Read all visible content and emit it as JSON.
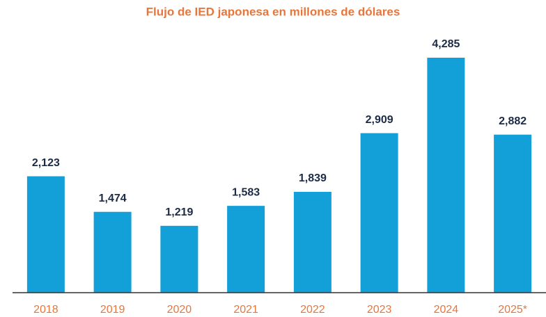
{
  "chart_data": {
    "type": "bar",
    "title": "Flujo de IED japonesa en millones de dólares",
    "categories": [
      "2018",
      "2019",
      "2020",
      "2021",
      "2022",
      "2023",
      "2024",
      "2025*"
    ],
    "values": [
      2123,
      1474,
      1219,
      1583,
      1839,
      2909,
      4285,
      2882
    ],
    "value_labels": [
      "2,123",
      "1,474",
      "1,219",
      "1,583",
      "1,839",
      "2,909",
      "4,285",
      "2,882"
    ],
    "color": "#139fd8"
  }
}
